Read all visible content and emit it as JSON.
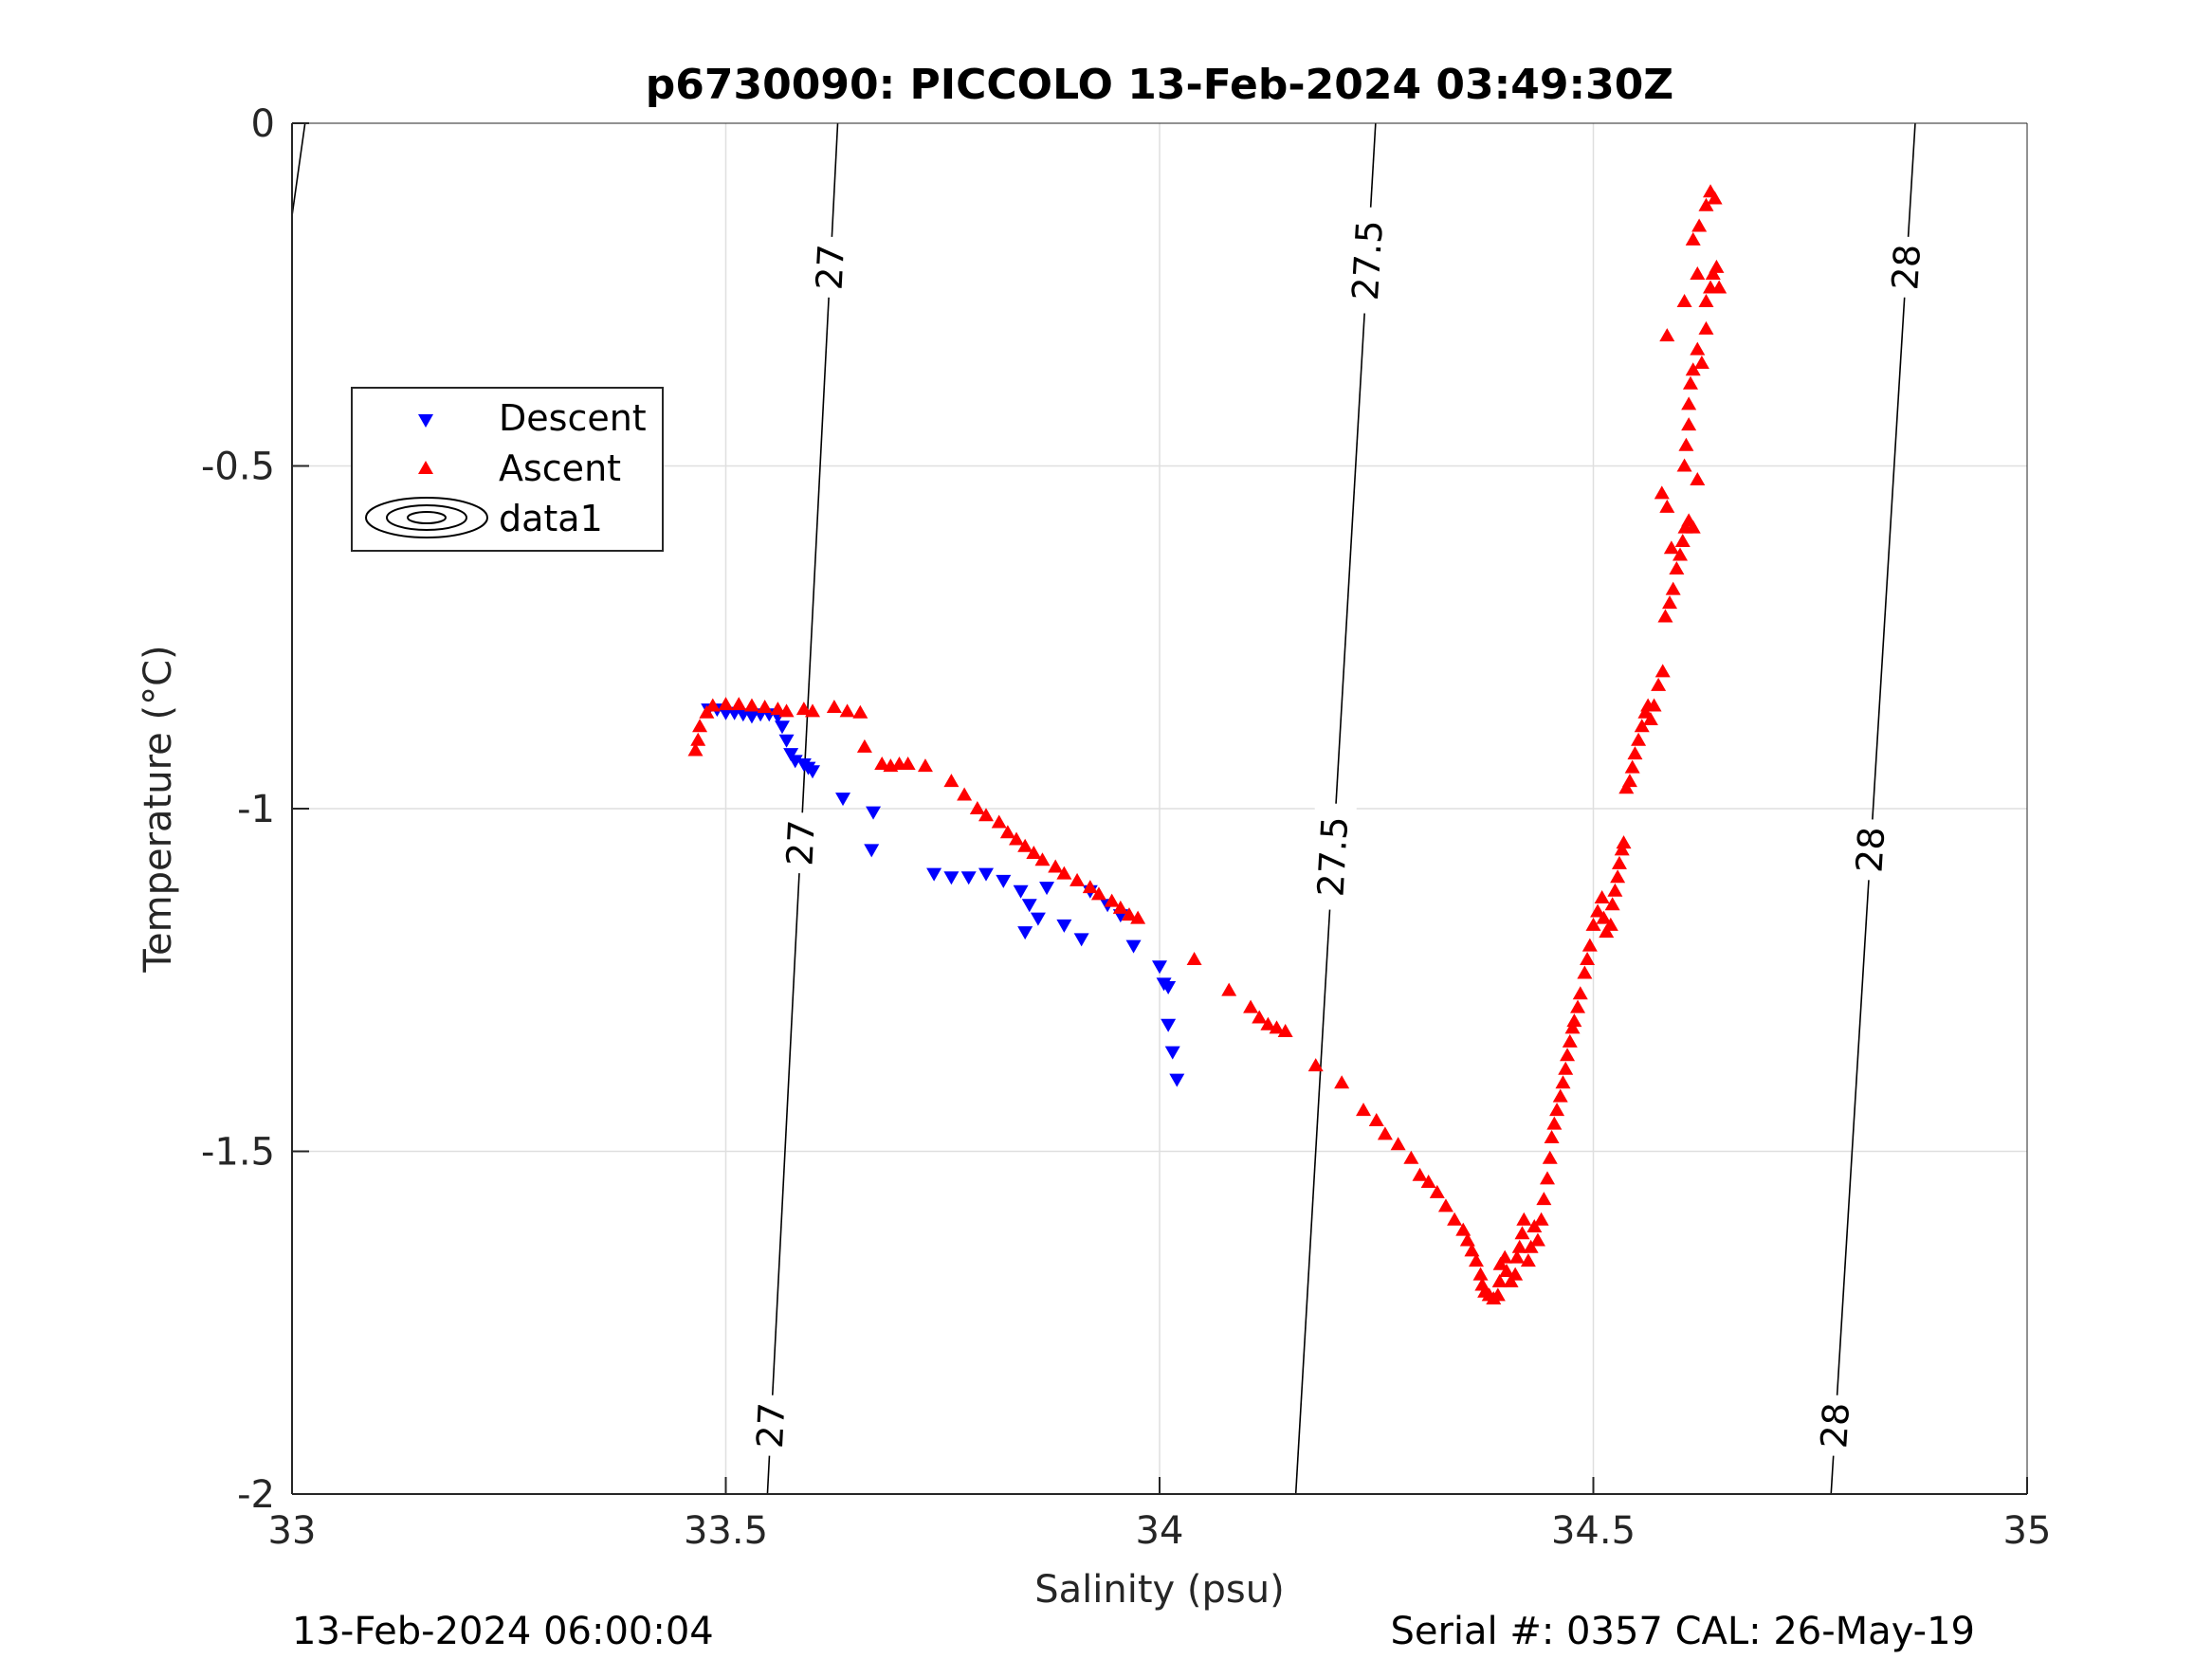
{
  "title": "p6730090: PICCOLO 13-Feb-2024 03:49:30Z",
  "footer": {
    "left": "13-Feb-2024 06:00:04",
    "right": "Serial #: 0357  CAL: 26-May-19"
  },
  "colors": {
    "descent": "#0000ff",
    "ascent": "#ff0000",
    "contour": "#000000",
    "grid": "#dfdfdf"
  },
  "chart_data": {
    "type": "scatter",
    "title": "p6730090: PICCOLO 13-Feb-2024 03:49:30Z",
    "xlabel": "Salinity (psu)",
    "ylabel": "Temperature (°C)",
    "xlim": [
      33,
      35
    ],
    "ylim": [
      -2,
      0
    ],
    "xticks": [
      "33",
      "33.5",
      "34",
      "34.5",
      "35"
    ],
    "yticks": [
      "0",
      "-0.5",
      "-1",
      "-1.5",
      "-2"
    ],
    "grid": true,
    "legend": {
      "position": "upper-left",
      "entries": [
        "Descent",
        "Ascent",
        "data1"
      ]
    },
    "contours": [
      {
        "level": "27",
        "line": [
          [
            33.548,
            -2.0
          ],
          [
            33.629,
            0.0
          ]
        ],
        "labels": [
          {
            "text": "27",
            "s": 33.55,
            "t": -1.9
          },
          {
            "text": "27",
            "s": 33.575,
            "t": -1.05
          },
          {
            "text": "27",
            "s": 33.623,
            "t": -0.21
          }
        ]
      },
      {
        "level": "27.5",
        "line": [
          [
            34.157,
            -2.0
          ],
          [
            34.249,
            0.0
          ]
        ],
        "labels": [
          {
            "text": "27.5",
            "s": 34.2,
            "t": -1.07
          },
          {
            "text": "27.5",
            "s": 34.24,
            "t": -0.2
          }
        ]
      },
      {
        "level": "28",
        "line": [
          [
            34.774,
            -2.0
          ],
          [
            34.871,
            0.0
          ]
        ],
        "labels": [
          {
            "text": "28",
            "s": 34.78,
            "t": -1.9
          },
          {
            "text": "28",
            "s": 34.81,
            "t": -1.06
          },
          {
            "text": "28",
            "s": 34.85,
            "t": -0.21
          }
        ]
      },
      {
        "level": "",
        "line": [
          [
            32.995,
            -0.18
          ],
          [
            33.015,
            0.0
          ]
        ],
        "labels": []
      }
    ],
    "series": [
      {
        "name": "Descent",
        "marker": "triangle-down",
        "color": "#0000ff",
        "points": [
          [
            33.48,
            -0.855
          ],
          [
            33.49,
            -0.855
          ],
          [
            33.5,
            -0.86
          ],
          [
            33.51,
            -0.86
          ],
          [
            33.52,
            -0.862
          ],
          [
            33.53,
            -0.865
          ],
          [
            33.54,
            -0.862
          ],
          [
            33.55,
            -0.862
          ],
          [
            33.56,
            -0.865
          ],
          [
            33.565,
            -0.88
          ],
          [
            33.57,
            -0.9
          ],
          [
            33.575,
            -0.92
          ],
          [
            33.58,
            -0.93
          ],
          [
            33.59,
            -0.935
          ],
          [
            33.595,
            -0.94
          ],
          [
            33.6,
            -0.945
          ],
          [
            33.635,
            -0.985
          ],
          [
            33.67,
            -1.005
          ],
          [
            33.668,
            -1.06
          ],
          [
            33.74,
            -1.095
          ],
          [
            33.76,
            -1.1
          ],
          [
            33.78,
            -1.1
          ],
          [
            33.8,
            -1.095
          ],
          [
            33.82,
            -1.105
          ],
          [
            33.84,
            -1.12
          ],
          [
            33.85,
            -1.14
          ],
          [
            33.86,
            -1.16
          ],
          [
            33.87,
            -1.115
          ],
          [
            33.845,
            -1.18
          ],
          [
            33.89,
            -1.17
          ],
          [
            33.91,
            -1.19
          ],
          [
            33.92,
            -1.12
          ],
          [
            33.94,
            -1.14
          ],
          [
            33.955,
            -1.155
          ],
          [
            33.97,
            -1.2
          ],
          [
            34.0,
            -1.23
          ],
          [
            34.005,
            -1.255
          ],
          [
            34.01,
            -1.26
          ],
          [
            34.01,
            -1.315
          ],
          [
            34.015,
            -1.355
          ],
          [
            34.02,
            -1.395
          ]
        ]
      },
      {
        "name": "Ascent",
        "marker": "triangle-up",
        "color": "#ff0000",
        "points": [
          [
            33.465,
            -0.915
          ],
          [
            33.468,
            -0.9
          ],
          [
            33.47,
            -0.88
          ],
          [
            33.478,
            -0.86
          ],
          [
            33.485,
            -0.85
          ],
          [
            33.5,
            -0.848
          ],
          [
            33.515,
            -0.848
          ],
          [
            33.53,
            -0.85
          ],
          [
            33.545,
            -0.852
          ],
          [
            33.56,
            -0.855
          ],
          [
            33.57,
            -0.858
          ],
          [
            33.59,
            -0.855
          ],
          [
            33.6,
            -0.858
          ],
          [
            33.625,
            -0.852
          ],
          [
            33.64,
            -0.858
          ],
          [
            33.655,
            -0.86
          ],
          [
            33.66,
            -0.91
          ],
          [
            33.68,
            -0.935
          ],
          [
            33.69,
            -0.938
          ],
          [
            33.7,
            -0.935
          ],
          [
            33.71,
            -0.935
          ],
          [
            33.73,
            -0.938
          ],
          [
            33.76,
            -0.96
          ],
          [
            33.775,
            -0.98
          ],
          [
            33.79,
            -1.0
          ],
          [
            33.8,
            -1.01
          ],
          [
            33.815,
            -1.02
          ],
          [
            33.825,
            -1.035
          ],
          [
            33.835,
            -1.045
          ],
          [
            33.845,
            -1.055
          ],
          [
            33.855,
            -1.065
          ],
          [
            33.865,
            -1.075
          ],
          [
            33.88,
            -1.085
          ],
          [
            33.89,
            -1.095
          ],
          [
            33.905,
            -1.105
          ],
          [
            33.92,
            -1.115
          ],
          [
            33.93,
            -1.125
          ],
          [
            33.945,
            -1.135
          ],
          [
            33.955,
            -1.145
          ],
          [
            33.965,
            -1.155
          ],
          [
            33.975,
            -1.16
          ],
          [
            34.04,
            -1.22
          ],
          [
            34.08,
            -1.265
          ],
          [
            34.105,
            -1.29
          ],
          [
            34.115,
            -1.305
          ],
          [
            34.125,
            -1.315
          ],
          [
            34.135,
            -1.32
          ],
          [
            34.145,
            -1.325
          ],
          [
            34.18,
            -1.375
          ],
          [
            34.21,
            -1.4
          ],
          [
            34.235,
            -1.44
          ],
          [
            34.25,
            -1.455
          ],
          [
            34.26,
            -1.475
          ],
          [
            34.275,
            -1.49
          ],
          [
            34.29,
            -1.51
          ],
          [
            34.3,
            -1.535
          ],
          [
            34.31,
            -1.545
          ],
          [
            34.32,
            -1.56
          ],
          [
            34.33,
            -1.58
          ],
          [
            34.34,
            -1.6
          ],
          [
            34.35,
            -1.615
          ],
          [
            34.355,
            -1.63
          ],
          [
            34.36,
            -1.645
          ],
          [
            34.365,
            -1.66
          ],
          [
            34.37,
            -1.68
          ],
          [
            34.372,
            -1.695
          ],
          [
            34.375,
            -1.705
          ],
          [
            34.38,
            -1.71
          ],
          [
            34.385,
            -1.715
          ],
          [
            34.39,
            -1.71
          ],
          [
            34.392,
            -1.69
          ],
          [
            34.393,
            -1.665
          ],
          [
            34.398,
            -1.655
          ],
          [
            34.4,
            -1.675
          ],
          [
            34.405,
            -1.69
          ],
          [
            34.41,
            -1.68
          ],
          [
            34.412,
            -1.655
          ],
          [
            34.415,
            -1.64
          ],
          [
            34.418,
            -1.62
          ],
          [
            34.42,
            -1.6
          ],
          [
            34.425,
            -1.66
          ],
          [
            34.428,
            -1.64
          ],
          [
            34.432,
            -1.61
          ],
          [
            34.436,
            -1.63
          ],
          [
            34.44,
            -1.6
          ],
          [
            34.443,
            -1.57
          ],
          [
            34.447,
            -1.54
          ],
          [
            34.45,
            -1.51
          ],
          [
            34.452,
            -1.48
          ],
          [
            34.455,
            -1.46
          ],
          [
            34.458,
            -1.44
          ],
          [
            34.462,
            -1.42
          ],
          [
            34.465,
            -1.4
          ],
          [
            34.468,
            -1.38
          ],
          [
            34.47,
            -1.36
          ],
          [
            34.473,
            -1.34
          ],
          [
            34.476,
            -1.32
          ],
          [
            34.478,
            -1.31
          ],
          [
            34.482,
            -1.29
          ],
          [
            34.485,
            -1.27
          ],
          [
            34.49,
            -1.24
          ],
          [
            34.493,
            -1.22
          ],
          [
            34.496,
            -1.2
          ],
          [
            34.5,
            -1.17
          ],
          [
            34.505,
            -1.15
          ],
          [
            34.51,
            -1.13
          ],
          [
            34.512,
            -1.16
          ],
          [
            34.515,
            -1.18
          ],
          [
            34.52,
            -1.17
          ],
          [
            34.522,
            -1.14
          ],
          [
            34.525,
            -1.12
          ],
          [
            34.528,
            -1.1
          ],
          [
            34.53,
            -1.08
          ],
          [
            34.533,
            -1.06
          ],
          [
            34.535,
            -1.05
          ],
          [
            34.538,
            -0.97
          ],
          [
            34.542,
            -0.96
          ],
          [
            34.545,
            -0.94
          ],
          [
            34.548,
            -0.92
          ],
          [
            34.552,
            -0.9
          ],
          [
            34.556,
            -0.88
          ],
          [
            34.56,
            -0.86
          ],
          [
            34.563,
            -0.85
          ],
          [
            34.566,
            -0.87
          ],
          [
            34.57,
            -0.85
          ],
          [
            34.575,
            -0.82
          ],
          [
            34.58,
            -0.8
          ],
          [
            34.583,
            -0.72
          ],
          [
            34.588,
            -0.7
          ],
          [
            34.592,
            -0.68
          ],
          [
            34.596,
            -0.65
          ],
          [
            34.6,
            -0.63
          ],
          [
            34.603,
            -0.61
          ],
          [
            34.606,
            -0.59
          ],
          [
            34.59,
            -0.62
          ],
          [
            34.585,
            -0.56
          ],
          [
            34.579,
            -0.54
          ],
          [
            34.61,
            -0.58
          ],
          [
            34.615,
            -0.59
          ],
          [
            34.62,
            -0.52
          ],
          [
            34.605,
            -0.5
          ],
          [
            34.607,
            -0.47
          ],
          [
            34.61,
            -0.44
          ],
          [
            34.61,
            -0.41
          ],
          [
            34.612,
            -0.38
          ],
          [
            34.615,
            -0.36
          ],
          [
            34.62,
            -0.33
          ],
          [
            34.625,
            -0.35
          ],
          [
            34.63,
            -0.3
          ],
          [
            34.63,
            -0.26
          ],
          [
            34.635,
            -0.24
          ],
          [
            34.638,
            -0.22
          ],
          [
            34.642,
            -0.21
          ],
          [
            34.645,
            -0.24
          ],
          [
            34.585,
            -0.31
          ],
          [
            34.605,
            -0.26
          ],
          [
            34.62,
            -0.22
          ],
          [
            34.615,
            -0.17
          ],
          [
            34.622,
            -0.15
          ],
          [
            34.63,
            -0.12
          ],
          [
            34.635,
            -0.1
          ],
          [
            34.64,
            -0.11
          ]
        ]
      }
    ]
  }
}
